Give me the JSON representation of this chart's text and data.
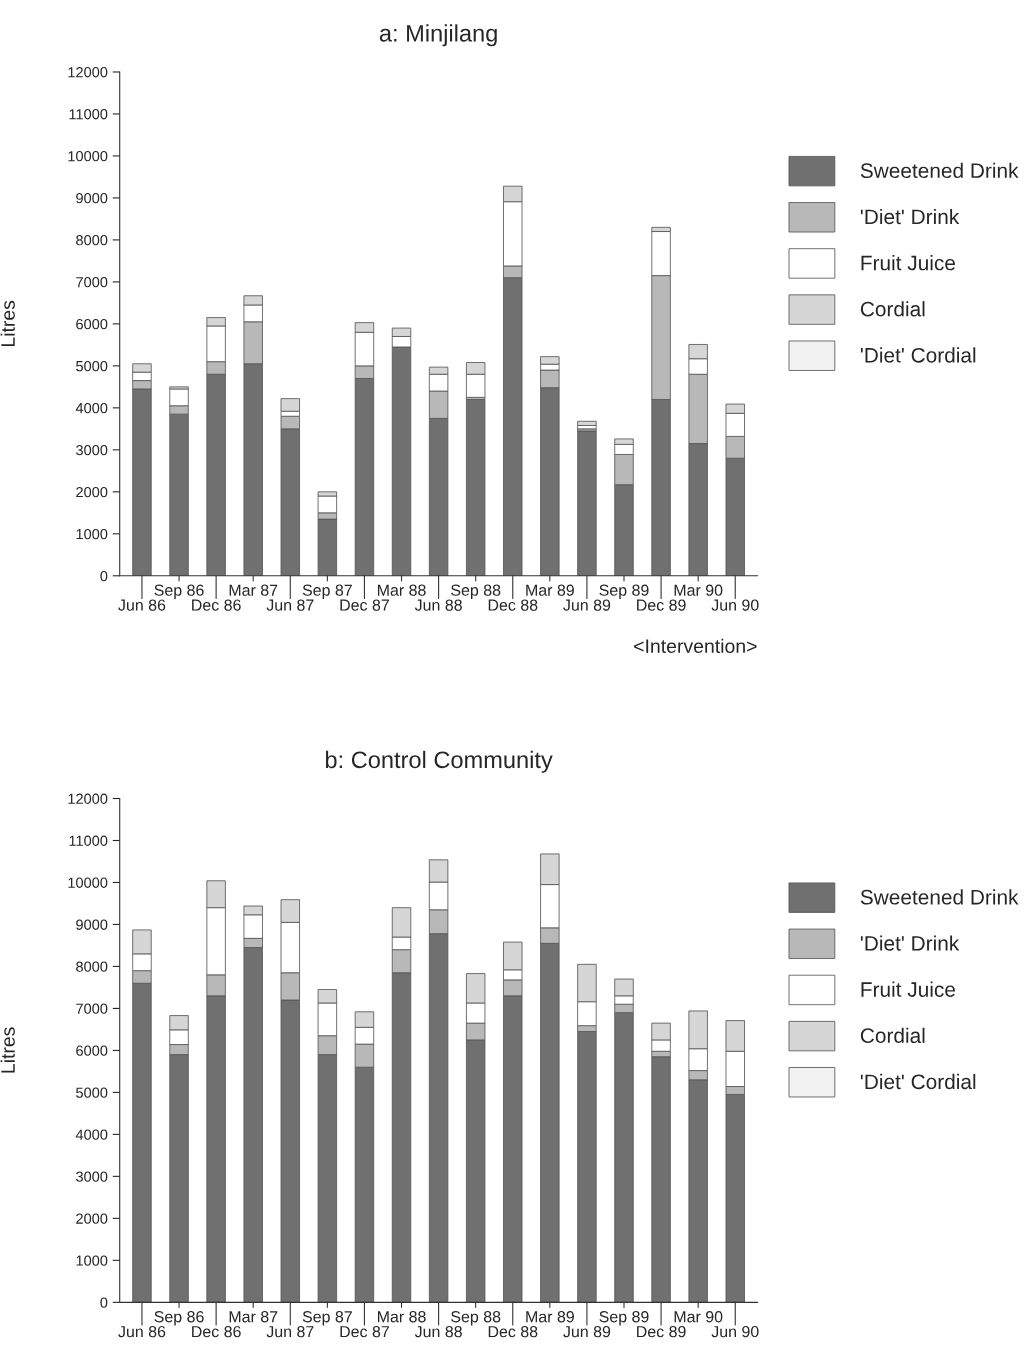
{
  "chart_data": [
    {
      "type": "bar",
      "title": "a: Minjilang",
      "ylabel": "Litres",
      "stacked": true,
      "legend": "right",
      "grid": false,
      "categories": [
        "Jun 86",
        "Sep 86",
        "Dec 86",
        "Mar 87",
        "Jun 87",
        "Sep 87",
        "Dec 87",
        "Mar 88",
        "Jun 88",
        "Sep 88",
        "Dec 88",
        "Mar 89",
        "Jun 89",
        "Sep 89",
        "Dec 89",
        "Mar 90",
        "Jun 90"
      ],
      "ylim": [
        0,
        12000
      ],
      "yticks": [
        0,
        1000,
        2000,
        3000,
        4000,
        5000,
        6000,
        7000,
        8000,
        9000,
        10000,
        11000,
        12000
      ],
      "annotations": [
        "<Intervention>"
      ],
      "series": [
        {
          "name": "Sweetened Drink",
          "color": "#707070",
          "values": [
            4450,
            3850,
            4800,
            5050,
            3500,
            1350,
            4700,
            5450,
            3750,
            4200,
            7100,
            4480,
            3450,
            2170,
            4200,
            3150,
            2800
          ]
        },
        {
          "name": "'Diet' Drink",
          "color": "#b8b8b8",
          "values": [
            200,
            200,
            300,
            1000,
            300,
            150,
            300,
            0,
            650,
            50,
            280,
            420,
            50,
            720,
            2950,
            1650,
            520
          ]
        },
        {
          "name": "Fruit Juice",
          "color": "#ffffff",
          "values": [
            200,
            400,
            850,
            400,
            120,
            400,
            800,
            250,
            400,
            550,
            1530,
            140,
            80,
            240,
            1050,
            370,
            550
          ]
        },
        {
          "name": "Cordial",
          "color": "#d6d6d6",
          "values": [
            200,
            50,
            200,
            220,
            300,
            100,
            230,
            200,
            170,
            280,
            370,
            180,
            100,
            130,
            100,
            340,
            220
          ]
        },
        {
          "name": "'Diet' Cordial",
          "color": "#f2f2f2",
          "values": [
            0,
            0,
            0,
            0,
            0,
            0,
            0,
            0,
            0,
            0,
            0,
            0,
            0,
            0,
            0,
            0,
            0
          ]
        }
      ]
    },
    {
      "type": "bar",
      "title": "b: Control Community",
      "ylabel": "Litres",
      "stacked": true,
      "legend": "right",
      "grid": false,
      "categories": [
        "Jun 86",
        "Sep 86",
        "Dec 86",
        "Mar 87",
        "Jun 87",
        "Sep 87",
        "Dec 87",
        "Mar 88",
        "Jun 88",
        "Sep 88",
        "Dec 88",
        "Mar 89",
        "Jun 89",
        "Sep 89",
        "Dec 89",
        "Mar 90",
        "Jun 90"
      ],
      "ylim": [
        0,
        12000
      ],
      "yticks": [
        0,
        1000,
        2000,
        3000,
        4000,
        5000,
        6000,
        7000,
        8000,
        9000,
        10000,
        11000,
        12000
      ],
      "series": [
        {
          "name": "Sweetened Drink",
          "color": "#707070",
          "values": [
            7600,
            5900,
            7300,
            8450,
            7200,
            5900,
            5600,
            7850,
            8780,
            6250,
            7300,
            8550,
            6450,
            6900,
            5850,
            5300,
            4950
          ]
        },
        {
          "name": "'Diet' Drink",
          "color": "#b8b8b8",
          "values": [
            300,
            240,
            500,
            220,
            650,
            450,
            550,
            550,
            570,
            400,
            380,
            370,
            140,
            200,
            130,
            220,
            190
          ]
        },
        {
          "name": "Fruit Juice",
          "color": "#ffffff",
          "values": [
            400,
            350,
            1600,
            560,
            1200,
            780,
            400,
            300,
            660,
            480,
            240,
            1030,
            570,
            200,
            270,
            520,
            840
          ]
        },
        {
          "name": "Cordial",
          "color": "#d6d6d6",
          "values": [
            570,
            340,
            640,
            210,
            540,
            320,
            370,
            700,
            530,
            700,
            660,
            730,
            890,
            400,
            400,
            900,
            730
          ]
        },
        {
          "name": "'Diet' Cordial",
          "color": "#f2f2f2",
          "values": [
            0,
            0,
            0,
            0,
            0,
            0,
            0,
            0,
            0,
            0,
            0,
            0,
            0,
            0,
            0,
            0,
            0
          ]
        }
      ]
    }
  ]
}
